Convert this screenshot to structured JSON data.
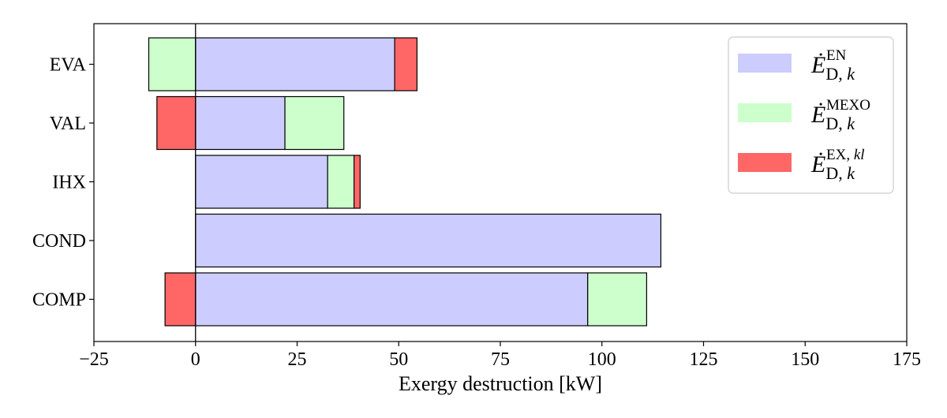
{
  "chart_data": {
    "type": "bar",
    "orientation": "horizontal",
    "stacked": "diverging",
    "categories": [
      "EVA",
      "VAL",
      "IHX",
      "COND",
      "COMP"
    ],
    "series": [
      {
        "key": "en",
        "name": "Ė_{D,k}^{EN}",
        "legend": {
          "base": "Ė",
          "sub": "D, k",
          "sup": "EN",
          "sup_italic": ""
        },
        "color": "#ccccff",
        "values": [
          49,
          22,
          32.5,
          114.5,
          96.5
        ]
      },
      {
        "key": "mexo",
        "name": "Ė_{D,k}^{MEXO}",
        "legend": {
          "base": "Ė",
          "sub": "D, k",
          "sup": "MEXO",
          "sup_italic": ""
        },
        "color": "#ccffcc",
        "values": [
          -11.5,
          14.5,
          6.5,
          0,
          14.5
        ]
      },
      {
        "key": "exkl",
        "name": "Ė_{D,k}^{EX,kl}",
        "legend": {
          "base": "Ė",
          "sub": "D, k",
          "sup": "EX, ",
          "sup_italic": "kl"
        },
        "color": "#ff6666",
        "values": [
          5.5,
          -9.5,
          1.5,
          0,
          -7.5
        ]
      }
    ],
    "xlabel": "Exergy destruction [kW]",
    "ylabel": "",
    "title": "",
    "xlim": [
      -25,
      175
    ],
    "xticks": [
      -25,
      0,
      25,
      50,
      75,
      100,
      125,
      150,
      175
    ],
    "xtick_labels": [
      "−25",
      "0",
      "25",
      "50",
      "75",
      "100",
      "125",
      "150",
      "175"
    ],
    "zero_line": 0,
    "grid": false,
    "legend_position": "top-right"
  }
}
